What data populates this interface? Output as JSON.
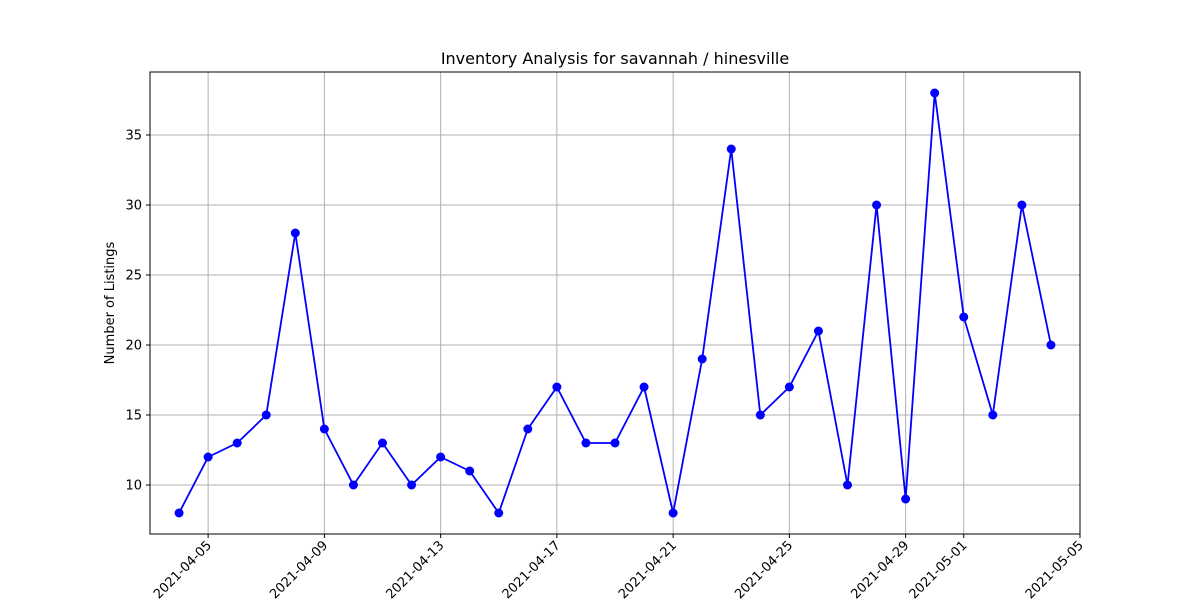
{
  "chart_data": {
    "type": "line",
    "title": "Inventory Analysis for savannah / hinesville",
    "xlabel": "",
    "ylabel": "Number of Listings",
    "x": [
      "2021-04-04",
      "2021-04-05",
      "2021-04-06",
      "2021-04-07",
      "2021-04-08",
      "2021-04-09",
      "2021-04-10",
      "2021-04-11",
      "2021-04-12",
      "2021-04-13",
      "2021-04-14",
      "2021-04-15",
      "2021-04-16",
      "2021-04-17",
      "2021-04-18",
      "2021-04-19",
      "2021-04-20",
      "2021-04-21",
      "2021-04-22",
      "2021-04-23",
      "2021-04-24",
      "2021-04-25",
      "2021-04-26",
      "2021-04-27",
      "2021-04-28",
      "2021-04-29",
      "2021-04-30",
      "2021-05-01",
      "2021-05-02",
      "2021-05-03",
      "2021-05-04"
    ],
    "values": [
      8,
      12,
      13,
      15,
      28,
      14,
      10,
      13,
      10,
      12,
      11,
      8,
      14,
      17,
      13,
      13,
      17,
      8,
      19,
      34,
      15,
      17,
      21,
      10,
      30,
      9,
      38,
      22,
      15,
      30,
      20
    ],
    "x_ticks": [
      "2021-04-05",
      "2021-04-09",
      "2021-04-13",
      "2021-04-17",
      "2021-04-21",
      "2021-04-25",
      "2021-04-29",
      "2021-05-01",
      "2021-05-05"
    ],
    "y_ticks": [
      10,
      15,
      20,
      25,
      30,
      35
    ],
    "xlim": [
      "2021-04-03",
      "2021-05-05"
    ],
    "ylim": [
      6.5,
      39.5
    ],
    "grid": true,
    "line_color": "#0000ff",
    "marker": "circle"
  }
}
